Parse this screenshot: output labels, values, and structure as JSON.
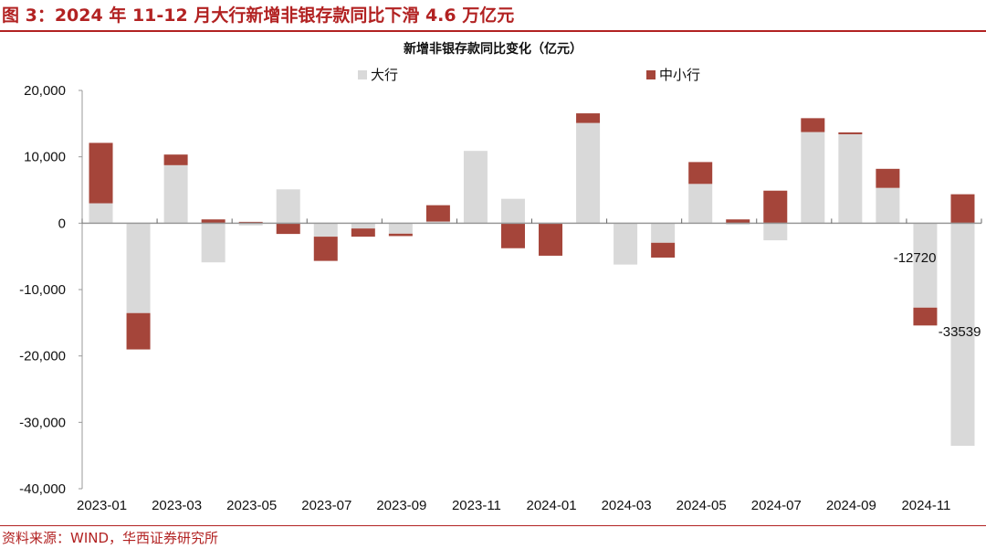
{
  "figure_title": "图 3：2024 年 11-12 月大行新增非银存款同比下滑 4.6 万亿元",
  "source": "资料来源：WIND，华西证券研究所",
  "colors": {
    "big_banks": "#d9d9d9",
    "small_mid_banks": "#a5453a",
    "title_red": "#b22222"
  },
  "chart_data": {
    "type": "bar",
    "stacked": true,
    "title": "新增非银存款同比变化（亿元）",
    "xlabel": "",
    "ylabel": "",
    "ylim": [
      -40000,
      20000
    ],
    "yticks": [
      20000,
      10000,
      0,
      -10000,
      -20000,
      -30000,
      -40000
    ],
    "ytick_labels": [
      "20,000",
      "10,000",
      "0",
      "-10,000",
      "-20,000",
      "-30,000",
      "-40,000"
    ],
    "legend_position": "top",
    "grid": false,
    "categories": [
      "2023-01",
      "2023-02",
      "2023-03",
      "2023-04",
      "2023-05",
      "2023-06",
      "2023-07",
      "2023-08",
      "2023-09",
      "2023-10",
      "2023-11",
      "2023-12",
      "2024-01",
      "2024-02",
      "2024-03",
      "2024-04",
      "2024-05",
      "2024-06",
      "2024-07",
      "2024-08",
      "2024-09",
      "2024-10",
      "2024-11",
      "2024-12"
    ],
    "xtick_labels": [
      "2023-01",
      "2023-03",
      "2023-05",
      "2023-07",
      "2023-09",
      "2023-11",
      "2024-01",
      "2024-03",
      "2024-05",
      "2024-07",
      "2024-09",
      "2024-11"
    ],
    "series": [
      {
        "name": "大行",
        "values": [
          3000,
          -13540,
          8740,
          -5900,
          -340,
          5100,
          -2030,
          -800,
          -1580,
          250,
          10890,
          3670,
          0,
          15100,
          -6230,
          -2950,
          5920,
          -200,
          -2580,
          13730,
          13400,
          5320,
          -12720,
          -33539
        ]
      },
      {
        "name": "中小行",
        "values": [
          9100,
          -5480,
          1600,
          570,
          200,
          -1620,
          -3650,
          -1230,
          -360,
          2460,
          0,
          -3770,
          -4900,
          1450,
          0,
          -2230,
          3290,
          570,
          4900,
          2090,
          280,
          2870,
          -2690,
          4360
        ]
      }
    ],
    "annotations": [
      {
        "category": "2024-11",
        "series": "大行",
        "text": "-12720"
      },
      {
        "category": "2024-12",
        "series": "大行",
        "text": "-33539"
      }
    ]
  }
}
